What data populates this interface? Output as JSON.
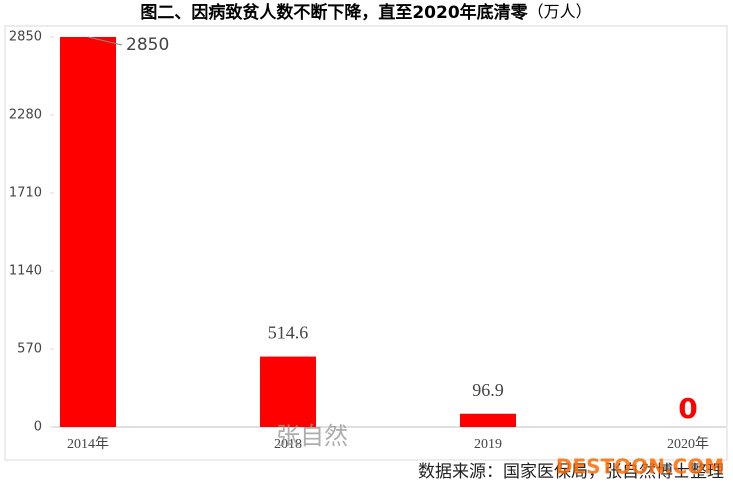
{
  "chart_data": {
    "type": "bar",
    "title": "图二、因病致贫人数不断下降，直至2020年底清零",
    "unit": "（万人）",
    "categories": [
      "2014年",
      "2018",
      "2019",
      "2020年"
    ],
    "values": [
      2850,
      514.6,
      96.9,
      0
    ],
    "color": "#ff0000",
    "ylim": [
      0,
      2850
    ],
    "yticks": [
      0,
      570,
      1140,
      1710,
      2280,
      2850
    ],
    "grid": false,
    "source": "数据来源：国家医保局，张自然博士整理",
    "watermark": "张自然",
    "site_watermark": "DESTOON.COM"
  }
}
